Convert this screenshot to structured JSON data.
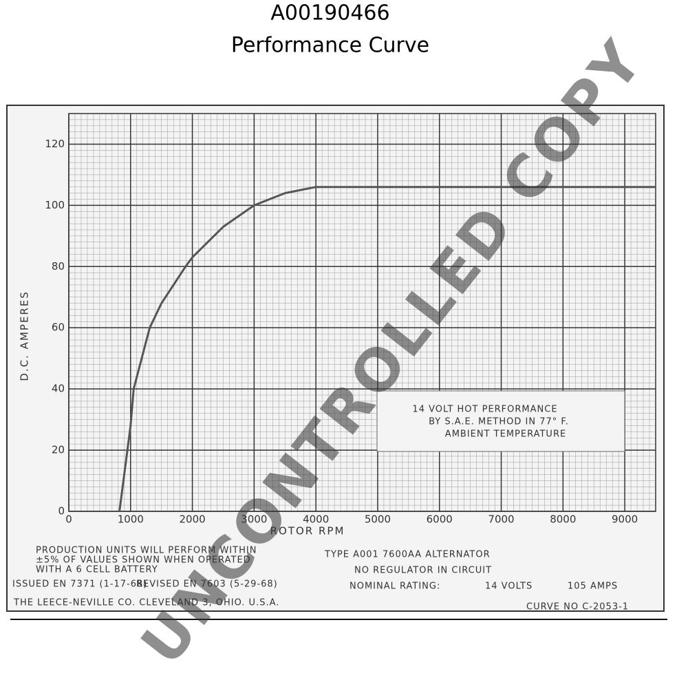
{
  "chart_data": {
    "type": "line",
    "title": "A00190466",
    "subtitle": "Performance Curve",
    "x_label": "ROTOR RPM",
    "y_label": "D.C. AMPERES",
    "x": [
      820,
      1000,
      1050,
      1310,
      1500,
      1890,
      2000,
      2500,
      3000,
      3500,
      4000,
      4200,
      9500
    ],
    "series": [
      {
        "color": "#555555",
        "values": [
          0,
          28,
          40,
          60,
          68,
          80,
          83,
          93,
          100,
          104,
          106,
          106,
          106
        ]
      }
    ],
    "xlim": [
      0,
      9500
    ],
    "ylim": [
      0,
      130
    ],
    "xticks": [
      0,
      1000,
      2000,
      3000,
      4000,
      5000,
      6000,
      7000,
      8000,
      9000
    ],
    "yticks": [
      0,
      20,
      40,
      60,
      80,
      100,
      120
    ],
    "grid": true,
    "annotation": [
      "14 VOLT HOT PERFORMANCE",
      "BY S.A.E. METHOD IN 77° F.",
      "AMBIENT TEMPERATURE"
    ]
  },
  "document": {
    "notes": [
      "PRODUCTION UNITS WILL PERFORM WITHIN",
      "±5% OF VALUES SHOWN WHEN OPERATED",
      "WITH A 6 CELL BATTERY"
    ],
    "type_label": "TYPE A001 7600AA ALTERNATOR",
    "regulator": "NO REGULATOR IN CIRCUIT",
    "rating_label": "NOMINAL RATING:",
    "rating_volts": "14 VOLTS",
    "rating_amps": "105 AMPS",
    "issued": "ISSUED EN 7371 (1-17-68)",
    "revised": "REVISED EN 7603 (5-29-68)",
    "company": "THE LEECE-NEVILLE CO. CLEVELAND 3, OHIO. U.S.A.",
    "curve_no": "CURVE NO C-2053-1",
    "watermark": "UNCONTROLLED COPY"
  }
}
